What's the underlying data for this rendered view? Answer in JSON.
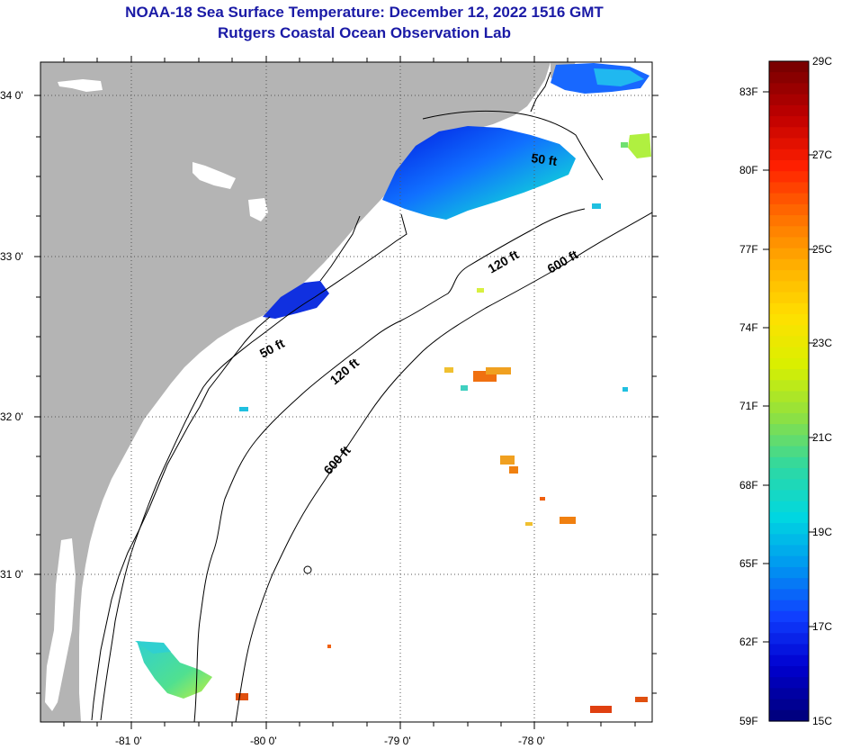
{
  "title": {
    "line1": "NOAA-18 Sea Surface Temperature:  December 12, 2022 1516 GMT",
    "line2": "Rutgers Coastal Ocean Observation Lab"
  },
  "map": {
    "lat_ticks": [
      "34 0'",
      "33 0'",
      "32 0'",
      "31 0'"
    ],
    "lon_ticks": [
      "-81 0'",
      "-80 0'",
      "-79 0'",
      "-78 0'"
    ],
    "contour_labels": [
      "50 ft",
      "50 ft",
      "120 ft",
      "120 ft",
      "600 ft",
      "600 ft"
    ],
    "land_color": "#b4b4b4",
    "ocean_color": "#ffffff"
  },
  "colorbar": {
    "fahrenheit": [
      "83F",
      "80F",
      "77F",
      "74F",
      "71F",
      "68F",
      "65F",
      "62F",
      "59F"
    ],
    "celsius": [
      "29C",
      "27C",
      "25C",
      "23C",
      "21C",
      "19C",
      "17C",
      "15C"
    ],
    "colors": [
      "#7a0000",
      "#c00000",
      "#ff2000",
      "#ff7000",
      "#ffb000",
      "#ffe000",
      "#d8f000",
      "#90e040",
      "#30d8a0",
      "#00d8e0",
      "#0098f0",
      "#1040ff",
      "#0000d0",
      "#000080"
    ]
  }
}
